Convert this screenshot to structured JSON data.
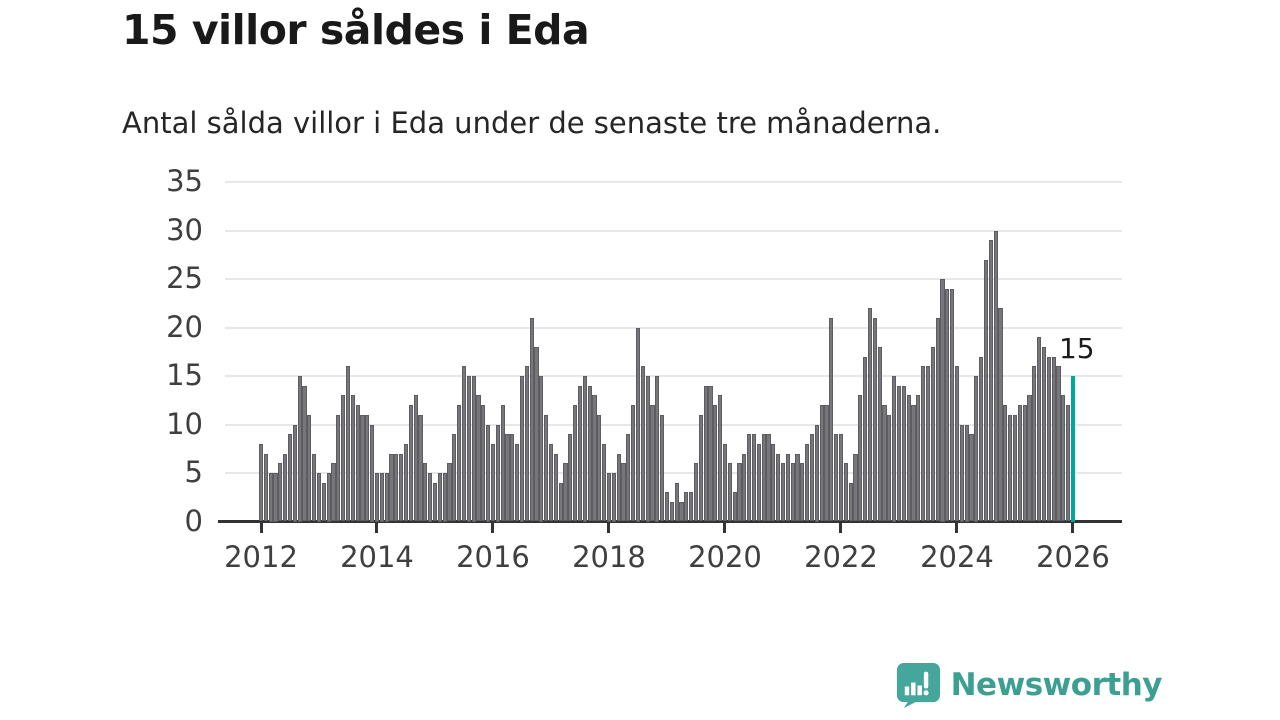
{
  "header": {
    "title": "15 villor såldes i Eda",
    "subtitle": "Antal sålda villor i Eda under de senaste tre månaderna."
  },
  "chart_data": {
    "type": "bar",
    "title": "15 villor såldes i Eda",
    "subtitle": "Antal sålda villor i Eda under de senaste tre månaderna.",
    "x_start": "2012-01",
    "x_end": "2026-01",
    "x_unit": "month",
    "x_tick_labels": [
      "2012",
      "2014",
      "2016",
      "2018",
      "2020",
      "2022",
      "2024",
      "2026"
    ],
    "y_ticks": [
      0,
      5,
      10,
      15,
      20,
      25,
      30,
      35
    ],
    "ylim": [
      0,
      35
    ],
    "grid": "horizontal",
    "legend": "none",
    "bar_color": "#77777b",
    "values": [
      8,
      7,
      5,
      5,
      6,
      7,
      9,
      10,
      15,
      14,
      11,
      7,
      5,
      4,
      5,
      6,
      11,
      13,
      16,
      13,
      12,
      11,
      11,
      10,
      5,
      5,
      5,
      7,
      7,
      7,
      8,
      12,
      13,
      11,
      6,
      5,
      4,
      5,
      5,
      6,
      9,
      12,
      16,
      15,
      15,
      13,
      12,
      10,
      8,
      10,
      12,
      9,
      9,
      8,
      15,
      16,
      21,
      18,
      15,
      11,
      8,
      7,
      4,
      6,
      9,
      12,
      14,
      15,
      14,
      13,
      11,
      8,
      5,
      5,
      7,
      6,
      9,
      12,
      20,
      16,
      15,
      12,
      15,
      11,
      3,
      2,
      4,
      2,
      3,
      3,
      6,
      11,
      14,
      14,
      12,
      13,
      8,
      6,
      3,
      6,
      7,
      9,
      9,
      8,
      9,
      9,
      8,
      7,
      6,
      7,
      6,
      7,
      6,
      8,
      9,
      10,
      12,
      12,
      21,
      9,
      9,
      6,
      4,
      7,
      13,
      17,
      22,
      21,
      18,
      12,
      11,
      15,
      14,
      14,
      13,
      12,
      13,
      16,
      16,
      18,
      21,
      25,
      24,
      24,
      16,
      10,
      10,
      9,
      15,
      17,
      27,
      29,
      30,
      22,
      12,
      11,
      11,
      12,
      12,
      13,
      16,
      19,
      18,
      17,
      17,
      16,
      13,
      12,
      15
    ],
    "highlight": {
      "index": 168,
      "month": "2026-01",
      "value": 15,
      "color": "#00a79c",
      "label": "15"
    }
  },
  "footer": {
    "brand": "Newsworthy",
    "brand_color": "#3d9f92",
    "logo_icon": "newsworthy-speech-bubble-chart-icon"
  }
}
